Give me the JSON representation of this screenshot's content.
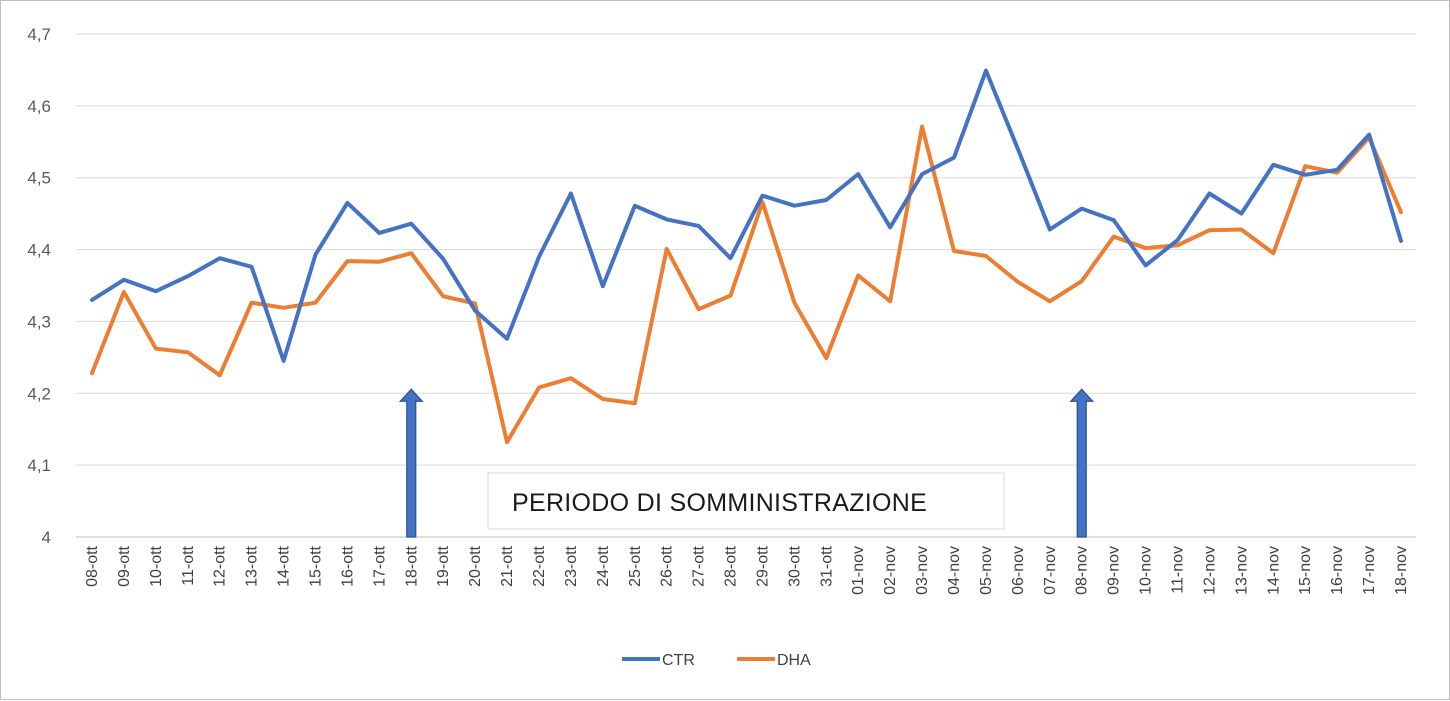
{
  "chart_data": {
    "type": "line",
    "title": "",
    "xlabel": "",
    "ylabel": "",
    "ylim": [
      4,
      4.7
    ],
    "yticks": [
      "4",
      "4,1",
      "4,2",
      "4,3",
      "4,4",
      "4,5",
      "4,6",
      "4,7"
    ],
    "grid": true,
    "legend_position": "bottom",
    "categories": [
      "08-ott",
      "09-ott",
      "10-ott",
      "11-ott",
      "12-ott",
      "13-ott",
      "14-ott",
      "15-ott",
      "16-ott",
      "17-ott",
      "18-ott",
      "19-ott",
      "20-ott",
      "21-ott",
      "22-ott",
      "23-ott",
      "24-ott",
      "25-ott",
      "26-ott",
      "27-ott",
      "28-ott",
      "29-ott",
      "30-ott",
      "31-ott",
      "01-nov",
      "02-nov",
      "03-nov",
      "04-nov",
      "05-nov",
      "06-nov",
      "07-nov",
      "08-nov",
      "09-nov",
      "10-nov",
      "11-nov",
      "12-nov",
      "13-nov",
      "14-nov",
      "15-nov",
      "16-nov",
      "17-nov",
      "18-nov"
    ],
    "series": [
      {
        "name": "CTR",
        "color": "#4472c4",
        "values": [
          4.33,
          4.358,
          4.342,
          4.363,
          4.388,
          4.376,
          4.245,
          4.393,
          4.465,
          4.423,
          4.436,
          4.387,
          4.315,
          4.276,
          4.39,
          4.478,
          4.349,
          4.461,
          4.442,
          4.433,
          4.388,
          4.475,
          4.461,
          4.469,
          4.505,
          4.431,
          4.505,
          4.528,
          4.649,
          4.54,
          4.428,
          4.457,
          4.441,
          4.378,
          4.413,
          4.478,
          4.45,
          4.518,
          4.504,
          4.511,
          4.56,
          4.412
        ]
      },
      {
        "name": "DHA",
        "color": "#ed7d31",
        "values": [
          4.228,
          4.341,
          4.262,
          4.257,
          4.225,
          4.326,
          4.319,
          4.326,
          4.384,
          4.383,
          4.395,
          4.335,
          4.325,
          4.132,
          4.208,
          4.221,
          4.192,
          4.186,
          4.401,
          4.317,
          4.336,
          4.466,
          4.326,
          4.249,
          4.364,
          4.328,
          4.571,
          4.398,
          4.391,
          4.355,
          4.328,
          4.356,
          4.418,
          4.402,
          4.406,
          4.427,
          4.428,
          4.395,
          4.516,
          4.507,
          4.556,
          4.452
        ]
      }
    ],
    "annotations": [
      {
        "text": "PERIODO DI SOMMINISTRAZIONE"
      }
    ],
    "arrows": [
      {
        "category": "18-ott",
        "label": "",
        "color": "#4472c4",
        "tip_value": 4.2
      },
      {
        "category": "08-nov",
        "label": "",
        "color": "#4472c4",
        "tip_value": 4.2
      }
    ]
  }
}
